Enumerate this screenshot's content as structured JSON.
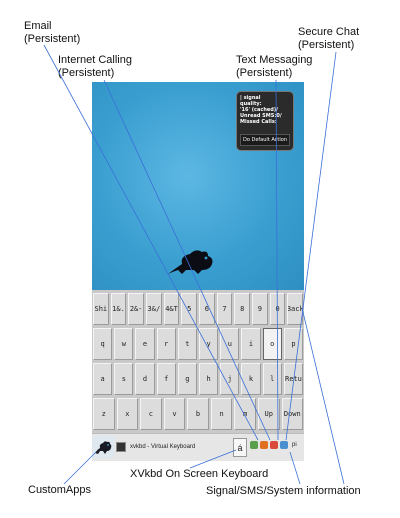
{
  "callouts": {
    "email": [
      "Email",
      "(Persistent)"
    ],
    "internet_calling": [
      "Internet Calling",
      "(Persistent)"
    ],
    "text_messaging": [
      "Text Messaging",
      "(Persistent)"
    ],
    "secure_chat": [
      "Secure Chat",
      "(Persistent)"
    ],
    "custom_apps": "CustomApps",
    "xvkbd": "XVkbd On Screen Keyboard",
    "signal_info": "Signal/SMS/System information"
  },
  "popup": {
    "lines": [
      "| signal",
      "quality:",
      "'16' (cached)/",
      "Unread SMS:0/",
      "Missed Calls:"
    ],
    "action": "Do Default Action"
  },
  "keyboard": {
    "rows": [
      [
        "Shi",
        "1&.",
        "2&-",
        "3&/",
        "4&T",
        "5",
        "6",
        "7",
        "8",
        "9",
        "0",
        "Back"
      ],
      [
        "q",
        "w",
        "e",
        "r",
        "t",
        "y",
        "u",
        "i",
        "o",
        "p"
      ],
      [
        "a",
        "s",
        "d",
        "f",
        "g",
        "h",
        "j",
        "k",
        "l",
        "Retu"
      ],
      [
        "z",
        "x",
        "c",
        "v",
        "b",
        "n",
        "m",
        "Up",
        "Down"
      ]
    ]
  },
  "taskbar": {
    "task_label": "xvkbd - Virtual Keyboard",
    "kbd_button": "á",
    "tray_label": "pi"
  },
  "colors": {
    "desktop": "#3b9fd1",
    "tray_icons": [
      "#5aa04a",
      "#e07020",
      "#d94a3a",
      "#4a8fd0"
    ]
  }
}
